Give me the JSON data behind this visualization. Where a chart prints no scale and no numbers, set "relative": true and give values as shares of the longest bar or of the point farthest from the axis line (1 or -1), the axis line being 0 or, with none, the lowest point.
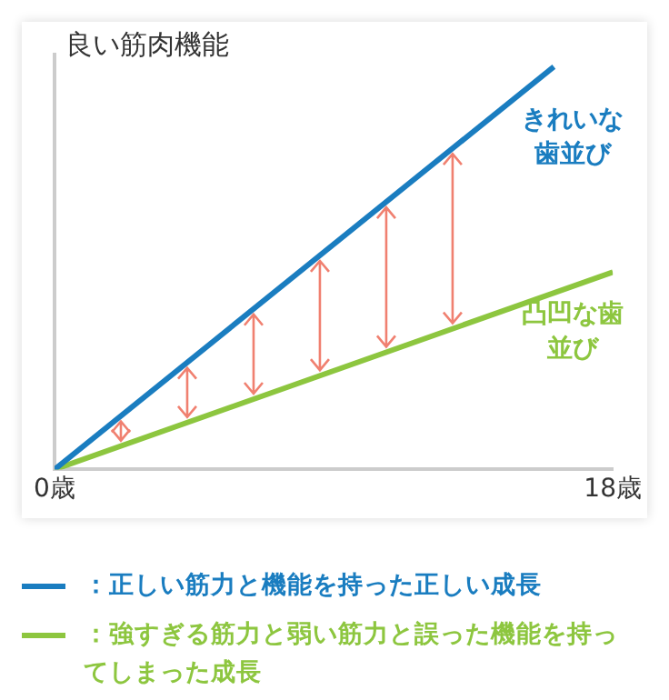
{
  "chart_data": {
    "type": "line",
    "relative": true,
    "ylabel": "良い筋肉機能",
    "xlim": [
      0,
      18
    ],
    "xticks": [
      {
        "value": 0,
        "label": "0歳"
      },
      {
        "value": 18,
        "label": "18歳"
      }
    ],
    "grid": false,
    "legend": "bottom",
    "marker": "none",
    "line_style": "solid",
    "series": [
      {
        "name": "：正しい筋力と機能を持った正しい成長",
        "color": "#1a7dc0",
        "x": [
          0,
          16.1
        ],
        "values": [
          0,
          1
        ]
      },
      {
        "name": "：強すぎる筋力と弱い筋力と誤った機能を持ってしまった成長",
        "color": "#8dc63f",
        "x": [
          0,
          18
        ],
        "values": [
          0,
          0.49
        ]
      }
    ],
    "annotations": [
      "きれいな歯並び",
      "凸凹な歯並び"
    ]
  }
}
